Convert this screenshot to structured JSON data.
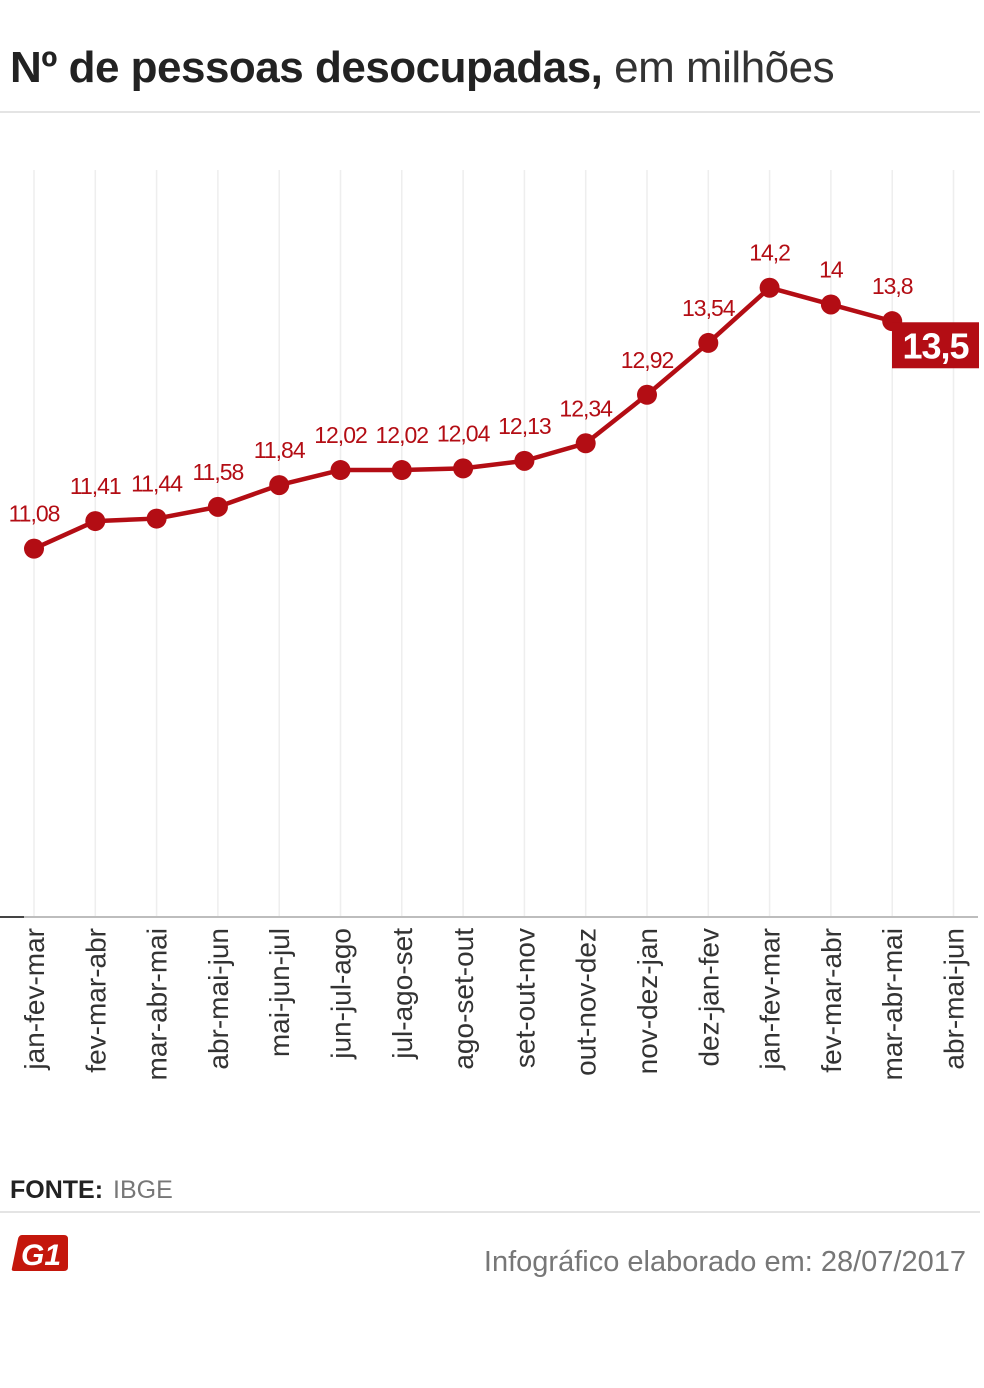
{
  "header": {
    "title_bold": "Nº de pessoas desocupadas,",
    "title_light": " em milhões"
  },
  "chart_data": {
    "type": "line",
    "categories": [
      "jan-fev-mar",
      "fev-mar-abr",
      "mar-abr-mai",
      "abr-mai-jun",
      "mai-jun-jul",
      "jun-jul-ago",
      "jul-ago-set",
      "ago-set-out",
      "set-out-nov",
      "out-nov-dez",
      "nov-dez-jan",
      "dez-jan-fev",
      "jan-fev-mar",
      "fev-mar-abr",
      "mar-abr-mai",
      "abr-mai-jun"
    ],
    "values": [
      11.08,
      11.41,
      11.44,
      11.58,
      11.84,
      12.02,
      12.02,
      12.04,
      12.13,
      12.34,
      12.92,
      13.54,
      14.2,
      14.0,
      13.8,
      13.5
    ],
    "labels": [
      "11,08",
      "11,41",
      "11,44",
      "11,58",
      "11,84",
      "12,02",
      "12,02",
      "12,04",
      "12,13",
      "12,34",
      "12,92",
      "13,54",
      "14,2",
      "14",
      "13,8",
      "13,5"
    ],
    "highlight_last": true,
    "ylim": [
      6.7,
      14.95
    ],
    "grid": "vertical",
    "colors": {
      "line": "#b30d14",
      "label": "#b30d14",
      "grid": "#eeeeee",
      "axis": "#bdbdbd"
    }
  },
  "source": {
    "label": "FONTE:",
    "value": "IBGE"
  },
  "footer": {
    "logo_text": "G1",
    "note": "Infográfico elaborado em: 28/07/2017"
  }
}
